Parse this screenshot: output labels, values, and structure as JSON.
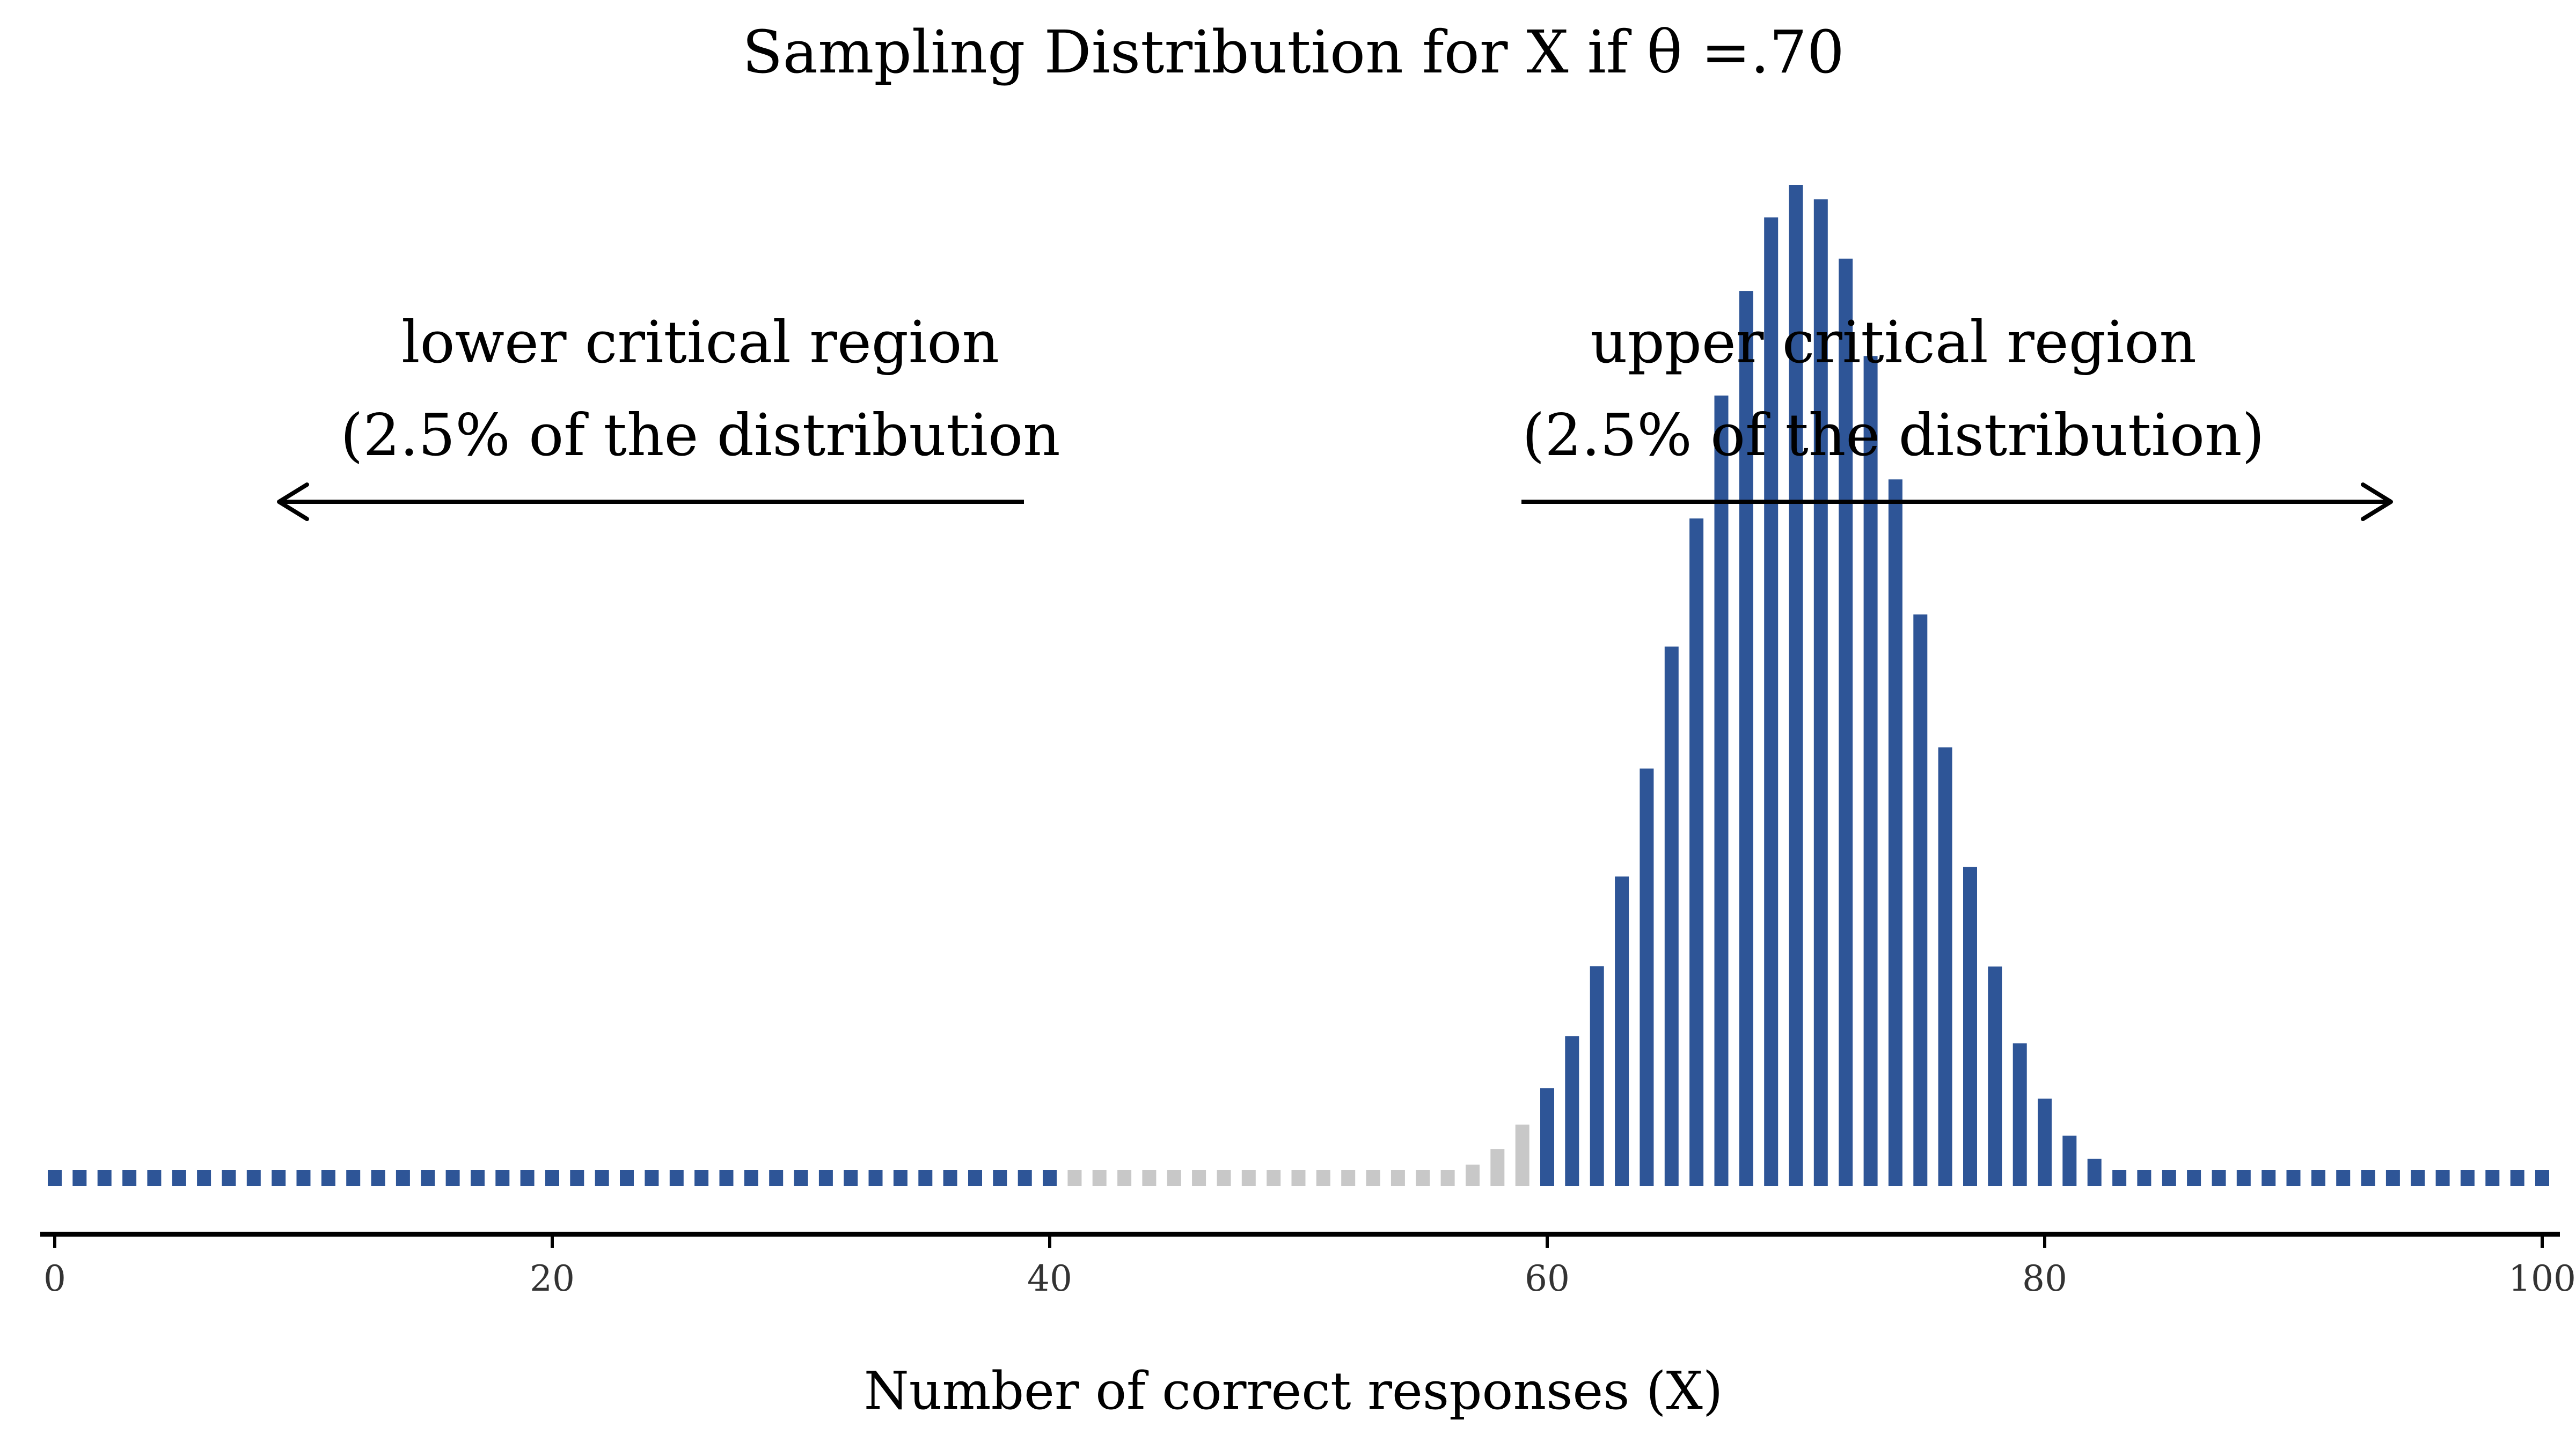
{
  "chart_data": {
    "type": "bar",
    "title": "Sampling Distribution for X if θ =.70",
    "xlabel": "Number of correct responses (X)",
    "ylabel": "",
    "xlim": [
      0,
      100
    ],
    "x_ticks": [
      "0",
      "20",
      "40",
      "60",
      "80",
      "100"
    ],
    "grid": false,
    "distribution": {
      "family": "binomial",
      "n": 100,
      "theta": 0.7
    },
    "critical_region_lower_max": 40,
    "critical_region_upper_min": 60,
    "colors": {
      "critical": "#2e5597",
      "non_critical": "#c8c8c8",
      "axis": "#000000"
    },
    "annotations": {
      "lower_line1": "lower critical region",
      "lower_line2": "(2.5% of the distribution",
      "upper_line1": "upper critical region",
      "upper_line2": "(2.5% of the distribution)"
    }
  }
}
